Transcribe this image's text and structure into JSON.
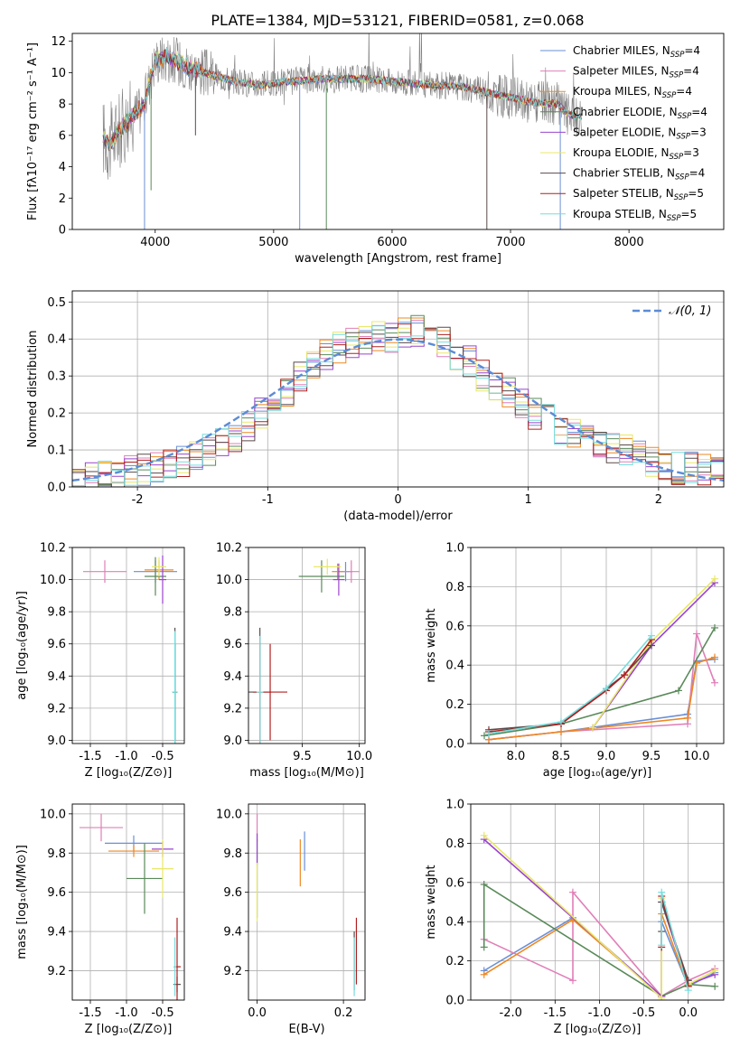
{
  "figure": {
    "title": "PLATE=1384, MJD=53121, FIBERID=0581, z=0.068"
  },
  "colors": {
    "series": [
      "#6a8fd6",
      "#e07fb8",
      "#ee8822",
      "#5a8a5a",
      "#9944cc",
      "#e8e868",
      "#5a4a4a",
      "#b02020",
      "#77dddd"
    ],
    "observed": "#808080",
    "gauss": "#5b8bd6",
    "grid": "#b0b0b0"
  },
  "chart_data": [
    {
      "type": "line",
      "id": "spectrum",
      "xlabel": "wavelength [Angstrom, rest frame]",
      "ylabel": "Flux [fλ10⁻¹⁷ erg cm⁻² s⁻¹ A⁻¹]",
      "xlim": [
        3300,
        8800
      ],
      "ylim": [
        0,
        12.5
      ],
      "xticks": [
        4000,
        5000,
        6000,
        7000,
        8000
      ],
      "yticks": [
        0,
        2,
        4,
        6,
        8,
        10,
        12
      ],
      "grid": false,
      "legend_position": "top-right",
      "series": [
        {
          "name": "Chabrier MILES, N_SSP=4"
        },
        {
          "name": "Salpeter MILES, N_SSP=4"
        },
        {
          "name": "Kroupa MILES, N_SSP=4"
        },
        {
          "name": "Chabrier ELODIE, N_SSP=4"
        },
        {
          "name": "Salpeter ELODIE, N_SSP=3"
        },
        {
          "name": "Kroupa ELODIE, N_SSP=3"
        },
        {
          "name": "Chabrier STELIB, N_SSP=4"
        },
        {
          "name": "Salpeter STELIB, N_SSP=5"
        },
        {
          "name": "Kroupa STELIB, N_SSP=5"
        }
      ],
      "continuum": {
        "x": [
          3560,
          3620,
          3700,
          3800,
          3900,
          3950,
          4000,
          4100,
          4200,
          4300,
          4500,
          4700,
          4900,
          5100,
          5400,
          5800,
          6200,
          6600,
          7000,
          7200,
          7400,
          7450,
          7500,
          7600
        ],
        "y": [
          5.9,
          5.5,
          6.3,
          7.2,
          7.8,
          9.4,
          10.8,
          11.0,
          10.7,
          10.3,
          9.8,
          9.4,
          9.2,
          9.4,
          9.6,
          9.6,
          9.3,
          9.1,
          8.4,
          8.1,
          8.0,
          7.6,
          7.3,
          7.2
        ]
      },
      "absorption_dips": [
        {
          "x": 3910,
          "y": 0.0
        },
        {
          "x": 3965,
          "y": 2.5
        },
        {
          "x": 4340,
          "y": 6.0
        },
        {
          "x": 5220,
          "y": 0.0
        },
        {
          "x": 5445,
          "y": 0.0
        },
        {
          "x": 6800,
          "y": 0.0
        },
        {
          "x": 7420,
          "y": 0.0
        }
      ]
    },
    {
      "type": "line",
      "id": "residuals",
      "xlabel": "(data-model)/error",
      "ylabel": "Normed distribution",
      "xlim": [
        -2.5,
        2.5
      ],
      "ylim": [
        0,
        0.53
      ],
      "xticks": [
        -2,
        -1,
        0,
        1,
        2
      ],
      "yticks": [
        0.0,
        0.1,
        0.2,
        0.3,
        0.4,
        0.5
      ],
      "grid": true,
      "legend_position": "top-right",
      "gauss_label": "𝒩(0, 1)",
      "bin_edges": [
        -2.5,
        -2.4,
        -2.3,
        -2.2,
        -2.1,
        -2.0,
        -1.9,
        -1.8,
        -1.7,
        -1.6,
        -1.5,
        -1.4,
        -1.3,
        -1.2,
        -1.1,
        -1.0,
        -0.9,
        -0.8,
        -0.7,
        -0.6,
        -0.5,
        -0.4,
        -0.3,
        -0.2,
        -0.1,
        0.0,
        0.1,
        0.2,
        0.3,
        0.4,
        0.5,
        0.6,
        0.7,
        0.8,
        0.9,
        1.0,
        1.1,
        1.2,
        1.3,
        1.4,
        1.5,
        1.6,
        1.7,
        1.8,
        1.9,
        2.0,
        2.1,
        2.2,
        2.3,
        2.4,
        2.5
      ],
      "base_values": [
        0.02,
        0.025,
        0.03,
        0.035,
        0.04,
        0.045,
        0.05,
        0.06,
        0.07,
        0.08,
        0.1,
        0.12,
        0.14,
        0.16,
        0.2,
        0.24,
        0.26,
        0.3,
        0.33,
        0.36,
        0.38,
        0.39,
        0.4,
        0.41,
        0.4,
        0.42,
        0.42,
        0.4,
        0.39,
        0.36,
        0.34,
        0.3,
        0.28,
        0.25,
        0.22,
        0.2,
        0.18,
        0.16,
        0.15,
        0.14,
        0.12,
        0.11,
        0.1,
        0.08,
        0.07,
        0.06,
        0.05,
        0.05,
        0.045,
        0.04
      ]
    },
    {
      "type": "scatter",
      "id": "age-vs-Z",
      "xlabel": "Z [log₁₀(Z/Z⊙)]",
      "ylabel": "age  [log₁₀(age/yr)]",
      "xlim": [
        -1.75,
        -0.2
      ],
      "ylim": [
        8.98,
        10.2
      ],
      "xticks": [
        -1.5,
        -1.0,
        -0.5
      ],
      "yticks": [
        9.0,
        9.2,
        9.4,
        9.6,
        9.8,
        10.0,
        10.2
      ],
      "grid": true,
      "points": [
        {
          "x": -0.6,
          "y": 10.05,
          "ex": 0.3,
          "ey": 0.07,
          "c": 0
        },
        {
          "x": -1.3,
          "y": 10.05,
          "ex": 0.3,
          "ey": 0.07,
          "c": 1
        },
        {
          "x": -0.55,
          "y": 10.06,
          "ex": 0.2,
          "ey": 0.06,
          "c": 2
        },
        {
          "x": -0.6,
          "y": 10.02,
          "ex": 0.15,
          "ey": 0.12,
          "c": 3
        },
        {
          "x": -0.5,
          "y": 10.0,
          "ex": 0.05,
          "ey": 0.15,
          "c": 4
        },
        {
          "x": -0.55,
          "y": 10.08,
          "ex": 0.1,
          "ey": 0.06,
          "c": 5
        },
        {
          "x": -0.33,
          "y": 9.3,
          "ex": 0.03,
          "ey": 0.4,
          "c": 6
        },
        {
          "x": -0.33,
          "y": 9.3,
          "ex": 0.03,
          "ey": 0.3,
          "c": 7
        },
        {
          "x": -0.33,
          "y": 9.3,
          "ex": 0.04,
          "ey": 0.38,
          "c": 8
        }
      ]
    },
    {
      "type": "scatter",
      "id": "age-vs-mass",
      "xlabel": "mass [log₁₀(M/M⊙)]",
      "ylabel": "",
      "xlim": [
        9.03,
        10.05
      ],
      "ylim": [
        8.98,
        10.2
      ],
      "xticks": [
        9.5,
        10.0
      ],
      "yticks": [
        9.0,
        9.2,
        9.4,
        9.6,
        9.8,
        10.0,
        10.2
      ],
      "grid": true,
      "points": [
        {
          "x": 9.88,
          "y": 10.05,
          "ex": 0.06,
          "ey": 0.06,
          "c": 0
        },
        {
          "x": 9.93,
          "y": 10.05,
          "ex": 0.07,
          "ey": 0.07,
          "c": 1
        },
        {
          "x": 9.81,
          "y": 10.05,
          "ex": 0.05,
          "ey": 0.05,
          "c": 2
        },
        {
          "x": 9.67,
          "y": 10.02,
          "ex": 0.2,
          "ey": 0.1,
          "c": 3
        },
        {
          "x": 9.82,
          "y": 10.0,
          "ex": 0.05,
          "ey": 0.1,
          "c": 4
        },
        {
          "x": 9.72,
          "y": 10.08,
          "ex": 0.12,
          "ey": 0.05,
          "c": 5
        },
        {
          "x": 9.13,
          "y": 9.3,
          "ex": 0.1,
          "ey": 0.4,
          "c": 6
        },
        {
          "x": 9.22,
          "y": 9.3,
          "ex": 0.15,
          "ey": 0.3,
          "c": 7
        },
        {
          "x": 9.13,
          "y": 9.3,
          "ex": 0.03,
          "ey": 0.35,
          "c": 8
        }
      ]
    },
    {
      "type": "line",
      "id": "mass-weight-vs-age",
      "xlabel": "age  [log₁₀(age/yr)]",
      "ylabel": "mass weight",
      "xlim": [
        7.5,
        10.3
      ],
      "ylim": [
        0,
        1.0
      ],
      "xticks": [
        8.0,
        8.5,
        9.0,
        9.5,
        10.0
      ],
      "yticks": [
        0.0,
        0.2,
        0.4,
        0.6,
        0.8,
        1.0
      ],
      "grid": true,
      "lines": [
        {
          "x": [
            7.7,
            8.5,
            9.9,
            10.0,
            10.2
          ],
          "y": [
            0.02,
            0.06,
            0.15,
            0.42,
            0.43
          ],
          "c": 0
        },
        {
          "x": [
            7.7,
            8.5,
            9.9,
            10.0,
            10.2
          ],
          "y": [
            0.02,
            0.06,
            0.1,
            0.56,
            0.31
          ],
          "c": 1
        },
        {
          "x": [
            7.7,
            8.5,
            9.9,
            10.0,
            10.2
          ],
          "y": [
            0.02,
            0.06,
            0.13,
            0.41,
            0.44
          ],
          "c": 2
        },
        {
          "x": [
            7.65,
            8.5,
            9.8,
            10.2
          ],
          "y": [
            0.04,
            0.1,
            0.27,
            0.59
          ],
          "c": 3
        },
        {
          "x": [
            8.85,
            9.5,
            10.2
          ],
          "y": [
            0.08,
            0.5,
            0.82
          ],
          "c": 4
        },
        {
          "x": [
            8.85,
            9.5,
            10.2
          ],
          "y": [
            0.08,
            0.52,
            0.84
          ],
          "c": 5
        },
        {
          "x": [
            7.7,
            8.5,
            9.0,
            9.2,
            9.5
          ],
          "y": [
            0.07,
            0.1,
            0.28,
            0.35,
            0.5
          ],
          "c": 6
        },
        {
          "x": [
            7.7,
            8.5,
            9.0,
            9.2,
            9.5
          ],
          "y": [
            0.06,
            0.1,
            0.27,
            0.35,
            0.53
          ],
          "c": 7
        },
        {
          "x": [
            7.7,
            8.5,
            9.0,
            9.5
          ],
          "y": [
            0.05,
            0.11,
            0.28,
            0.55
          ],
          "c": 8
        }
      ]
    },
    {
      "type": "scatter",
      "id": "mass-vs-Z",
      "xlabel": "Z [log₁₀(Z/Z⊙)]",
      "ylabel": "mass [log₁₀(M/M⊙)]",
      "xlim": [
        -1.75,
        -0.2
      ],
      "ylim": [
        9.05,
        10.05
      ],
      "xticks": [
        -1.5,
        -1.0,
        -0.5
      ],
      "yticks": [
        9.2,
        9.4,
        9.6,
        9.8,
        10.0
      ],
      "grid": true,
      "points": [
        {
          "x": -0.9,
          "y": 9.85,
          "ex": 0.4,
          "ey": 0.04,
          "c": 0
        },
        {
          "x": -1.35,
          "y": 9.93,
          "ex": 0.3,
          "ey": 0.07,
          "c": 1
        },
        {
          "x": -0.9,
          "y": 9.81,
          "ex": 0.35,
          "ey": 0.03,
          "c": 2
        },
        {
          "x": -0.75,
          "y": 9.67,
          "ex": 0.25,
          "ey": 0.18,
          "c": 3
        },
        {
          "x": -0.5,
          "y": 9.82,
          "ex": 0.15,
          "ey": 0.04,
          "c": 4
        },
        {
          "x": -0.5,
          "y": 9.72,
          "ex": 0.15,
          "ey": 0.15,
          "c": 5
        },
        {
          "x": -0.3,
          "y": 9.13,
          "ex": 0.05,
          "ey": 0.04,
          "c": 6
        },
        {
          "x": -0.3,
          "y": 9.22,
          "ex": 0.05,
          "ey": 0.25,
          "c": 7
        },
        {
          "x": -0.33,
          "y": 9.22,
          "ex": 0.02,
          "ey": 0.15,
          "c": 8
        }
      ]
    },
    {
      "type": "scatter",
      "id": "mass-vs-EBV",
      "xlabel": "E(B-V)",
      "ylabel": "",
      "xlim": [
        -0.02,
        0.25
      ],
      "ylim": [
        9.05,
        10.05
      ],
      "xticks": [
        0.0,
        0.2
      ],
      "yticks": [
        9.2,
        9.4,
        9.6,
        9.8,
        10.0
      ],
      "grid": true,
      "points": [
        {
          "x": 0.11,
          "y": 9.81,
          "ex": 0,
          "ey": 0.1,
          "c": 0
        },
        {
          "x": 0.0,
          "y": 9.93,
          "ex": 0,
          "ey": 0.07,
          "c": 1
        },
        {
          "x": 0.1,
          "y": 9.75,
          "ex": 0,
          "ey": 0.12,
          "c": 2
        },
        {
          "x": 0.0,
          "y": 9.67,
          "ex": 0,
          "ey": 0.2,
          "c": 3
        },
        {
          "x": 0.0,
          "y": 9.82,
          "ex": 0,
          "ey": 0.08,
          "c": 4
        },
        {
          "x": 0.0,
          "y": 9.6,
          "ex": 0,
          "ey": 0.15,
          "c": 5
        },
        {
          "x": 0.225,
          "y": 9.25,
          "ex": 0,
          "ey": 0.15,
          "c": 6
        },
        {
          "x": 0.23,
          "y": 9.3,
          "ex": 0,
          "ey": 0.17,
          "c": 7
        },
        {
          "x": 0.225,
          "y": 9.22,
          "ex": 0,
          "ey": 0.15,
          "c": 8
        }
      ]
    },
    {
      "type": "line",
      "id": "mass-weight-vs-Z",
      "xlabel": "Z [log₁₀(Z/Z⊙)]",
      "ylabel": "mass weight",
      "xlim": [
        -2.45,
        0.4
      ],
      "ylim": [
        0,
        1.0
      ],
      "xticks": [
        -2.0,
        -1.5,
        -1.0,
        -0.5,
        0.0
      ],
      "yticks": [
        0.0,
        0.2,
        0.4,
        0.6,
        0.8,
        1.0
      ],
      "grid": true,
      "lines": [
        {
          "x": [
            -2.3,
            -1.3,
            -0.3,
            -0.3,
            0.0,
            0.3
          ],
          "y": [
            0.15,
            0.42,
            0.02,
            0.4,
            0.07,
            0.14
          ],
          "c": 0
        },
        {
          "x": [
            -2.3,
            -1.3,
            -1.3,
            -0.3,
            0.0,
            0.3
          ],
          "y": [
            0.31,
            0.1,
            0.55,
            0.02,
            0.1,
            0.16
          ],
          "c": 1
        },
        {
          "x": [
            -2.3,
            -1.3,
            -0.3,
            -0.3,
            0.0
          ],
          "y": [
            0.13,
            0.41,
            0.02,
            0.44,
            0.07
          ],
          "c": 2
        },
        {
          "x": [
            -2.3,
            -2.3,
            -0.3,
            0.0,
            0.3
          ],
          "y": [
            0.27,
            0.59,
            0.02,
            0.08,
            0.07
          ],
          "c": 3
        },
        {
          "x": [
            -2.3,
            -0.3,
            -0.3,
            0.0,
            0.3
          ],
          "y": [
            0.82,
            0.02,
            0.5,
            0.08,
            0.13
          ],
          "c": 4
        },
        {
          "x": [
            -2.3,
            -0.3,
            -0.3,
            0.0,
            0.3
          ],
          "y": [
            0.84,
            0.01,
            0.52,
            0.08,
            0.15
          ],
          "c": 5
        },
        {
          "x": [
            -0.3,
            -0.3,
            0.0
          ],
          "y": [
            0.35,
            0.5,
            0.1
          ],
          "c": 6
        },
        {
          "x": [
            -0.3,
            -0.3,
            0.0
          ],
          "y": [
            0.27,
            0.53,
            0.07
          ],
          "c": 7
        },
        {
          "x": [
            -0.3,
            -0.3,
            0.0
          ],
          "y": [
            0.28,
            0.55,
            0.05
          ],
          "c": 8
        }
      ]
    }
  ]
}
